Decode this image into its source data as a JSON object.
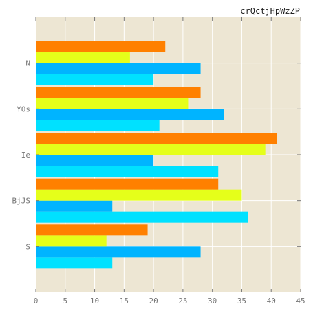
{
  "chart_data": {
    "type": "bar",
    "orientation": "horizontal",
    "title": "crQctjHpWzZP",
    "xlabel": "",
    "ylabel": "",
    "categories": [
      "S",
      "BjJS",
      "Ie",
      "YOs",
      "N"
    ],
    "xlim": [
      0,
      45
    ],
    "xticks": [
      "0",
      "5",
      "10",
      "15",
      "20",
      "25",
      "30",
      "35",
      "40",
      "45"
    ],
    "grid": true,
    "series": [
      {
        "color": "#00e1ff",
        "values": [
          13,
          36,
          31,
          21,
          20
        ]
      },
      {
        "color": "#00b4ff",
        "values": [
          28,
          13,
          20,
          32,
          28
        ]
      },
      {
        "color": "#e5ff1a",
        "values": [
          12,
          35,
          39,
          26,
          16
        ]
      },
      {
        "color": "#ff8000",
        "values": [
          19,
          31,
          41,
          28,
          22
        ]
      }
    ],
    "colors": {
      "plot_background": "#ede6d3",
      "grid": "#ffffff",
      "axis_text": "#777777"
    }
  }
}
